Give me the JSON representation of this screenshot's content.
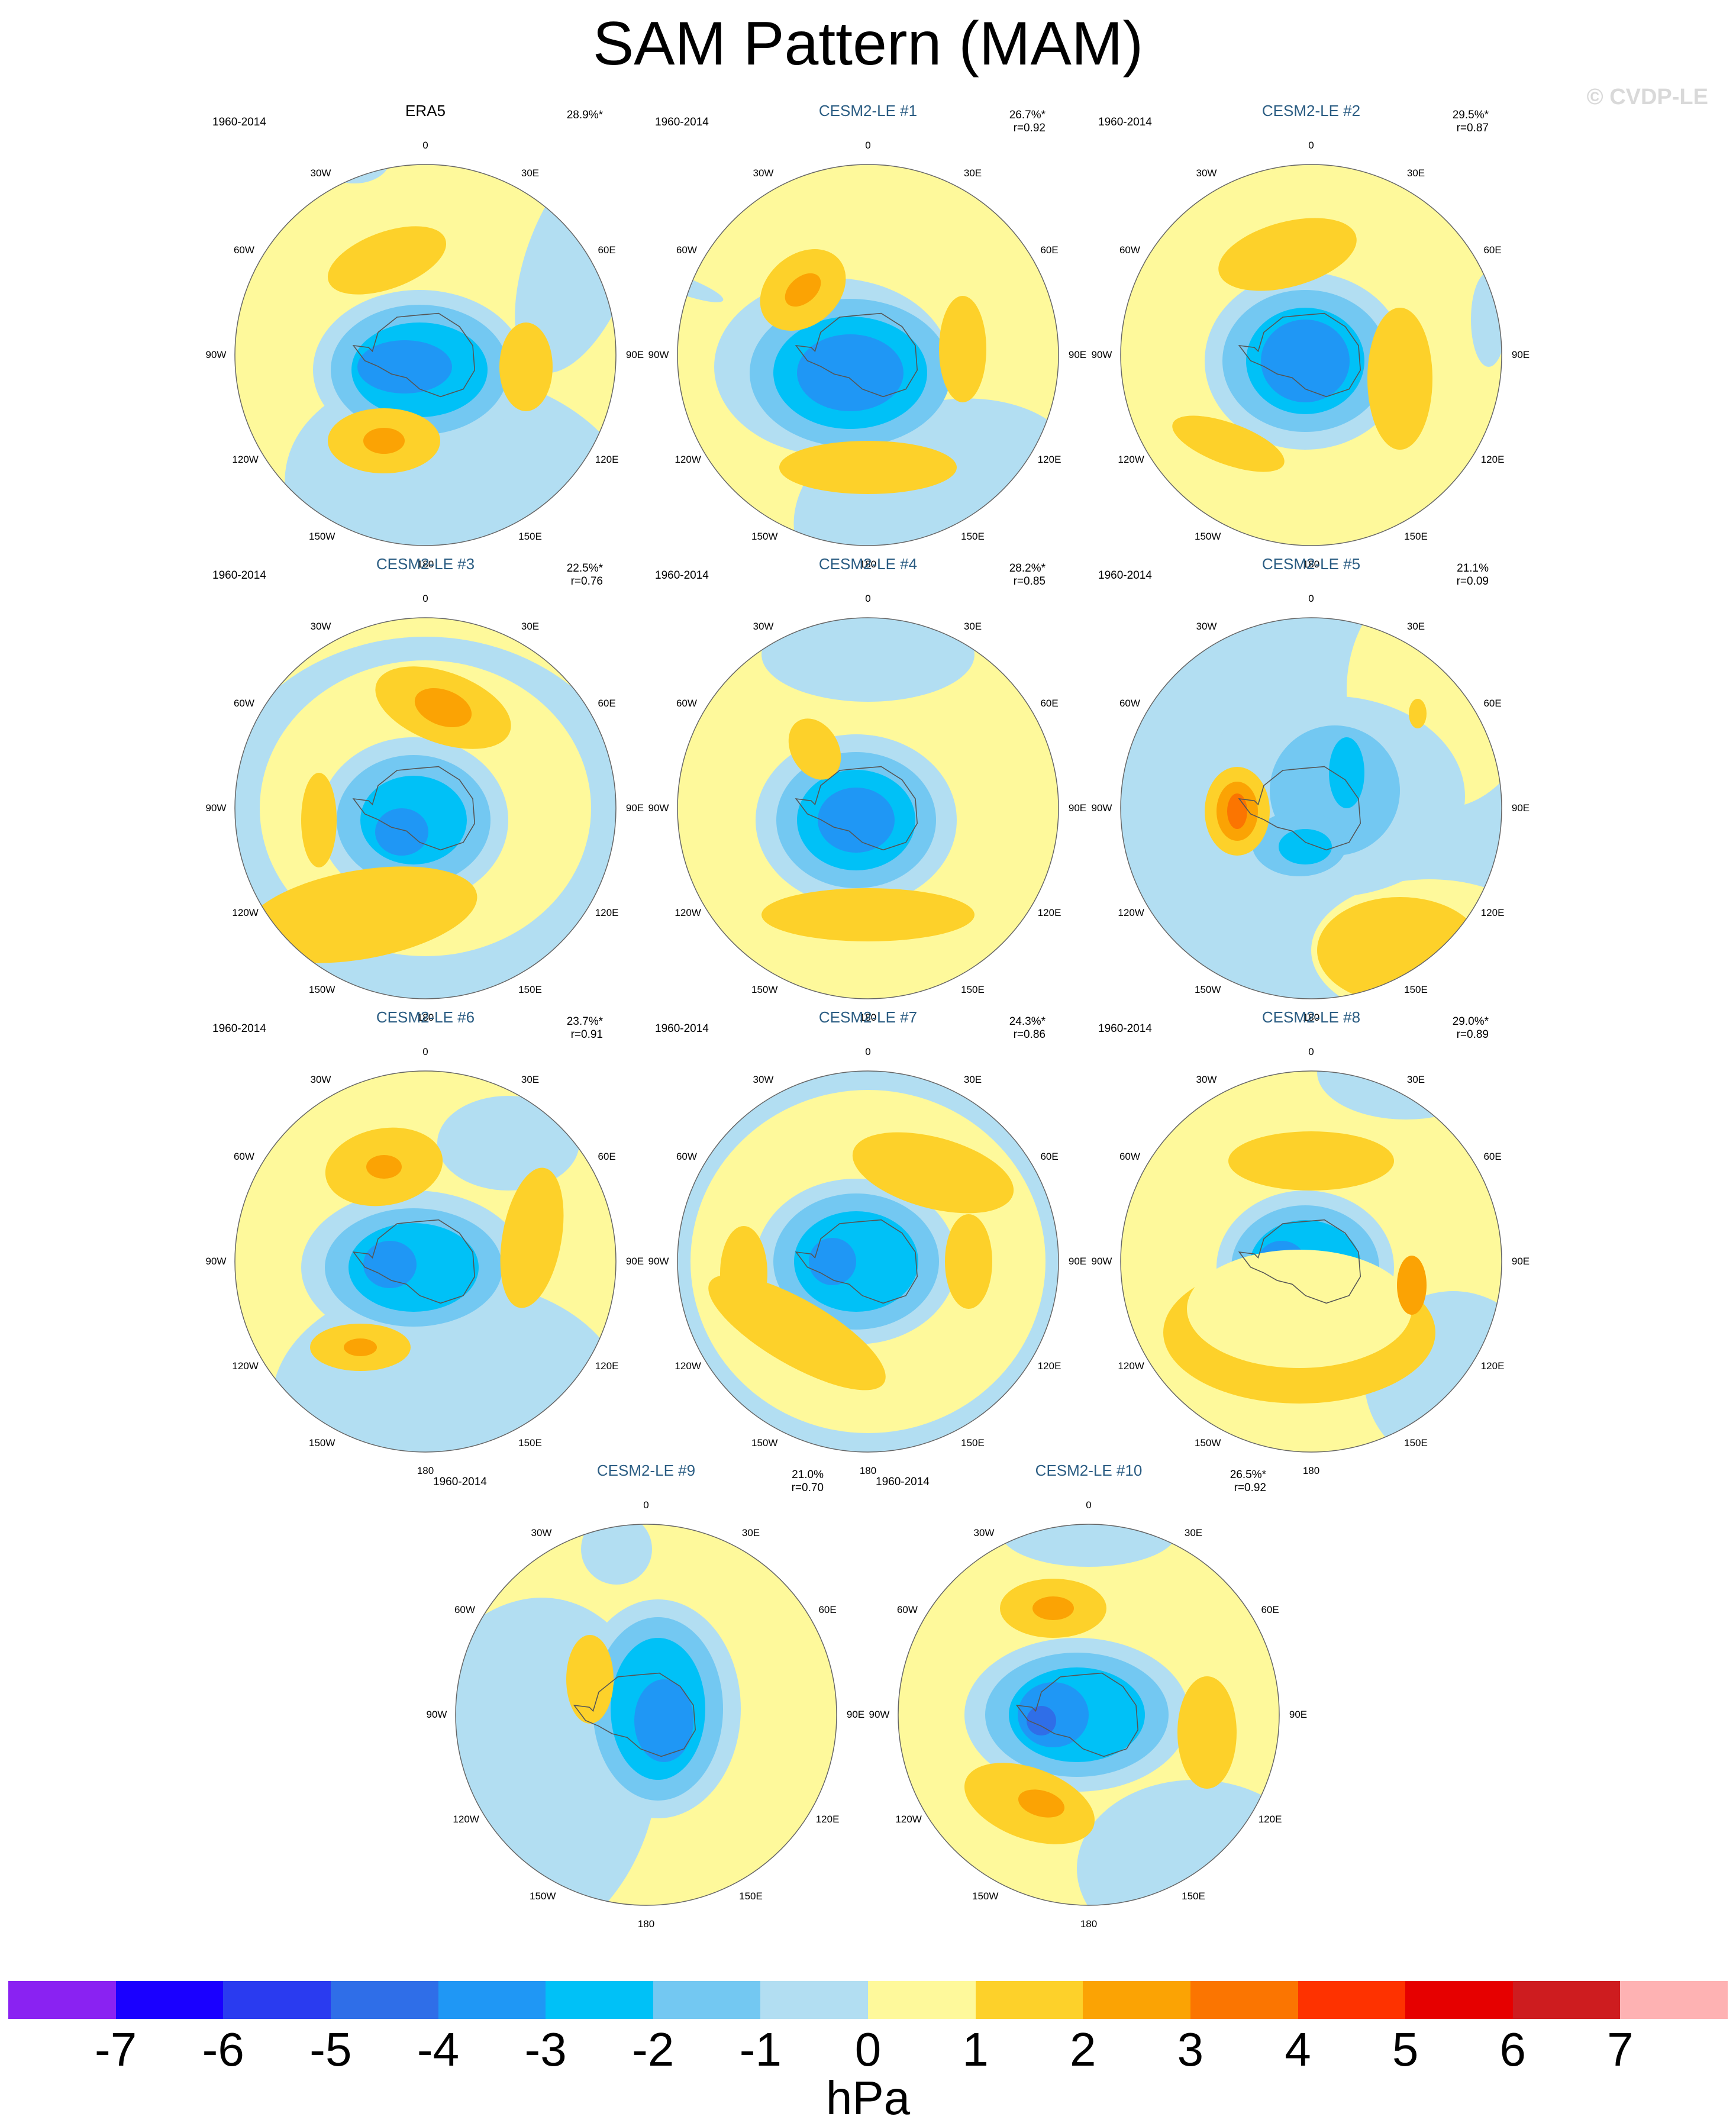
{
  "title": "SAM Pattern (MAM)",
  "copyright": "© CVDP-LE",
  "years": "1960-2014",
  "lon_labels": [
    "0",
    "30E",
    "60E",
    "90E",
    "120E",
    "150E",
    "180",
    "150W",
    "120W",
    "90W",
    "60W",
    "30W"
  ],
  "panels": [
    {
      "name": "ERA5",
      "obs": true,
      "pct": "28.9%*",
      "r": ""
    },
    {
      "name": "CESM2-LE #1",
      "obs": false,
      "pct": "26.7%*",
      "r": "r=0.92"
    },
    {
      "name": "CESM2-LE #2",
      "obs": false,
      "pct": "29.5%*",
      "r": "r=0.87"
    },
    {
      "name": "CESM2-LE #3",
      "obs": false,
      "pct": "22.5%*",
      "r": "r=0.76"
    },
    {
      "name": "CESM2-LE #4",
      "obs": false,
      "pct": "28.2%*",
      "r": "r=0.85"
    },
    {
      "name": "CESM2-LE #5",
      "obs": false,
      "pct": "21.1%",
      "r": "r=0.09"
    },
    {
      "name": "CESM2-LE #6",
      "obs": false,
      "pct": "23.7%*",
      "r": "r=0.91"
    },
    {
      "name": "CESM2-LE #7",
      "obs": false,
      "pct": "24.3%*",
      "r": "r=0.86"
    },
    {
      "name": "CESM2-LE #8",
      "obs": false,
      "pct": "29.0%*",
      "r": "r=0.89"
    },
    {
      "name": "CESM2-LE #9",
      "obs": false,
      "pct": "21.0%",
      "r": "r=0.70"
    },
    {
      "name": "CESM2-LE #10",
      "obs": false,
      "pct": "26.5%*",
      "r": "r=0.92"
    }
  ],
  "colorbar": {
    "colors": [
      "#8a22f2",
      "#1a00ff",
      "#2a3bf0",
      "#2f6ee8",
      "#1f97f5",
      "#00c1f7",
      "#73c8f2",
      "#b2def2",
      "#fef99b",
      "#fdd12a",
      "#fba304",
      "#fb7501",
      "#fe3200",
      "#e60000",
      "#ce1c1f",
      "#feb2b3"
    ],
    "ticks": [
      "-7",
      "-6",
      "-5",
      "-4",
      "-3",
      "-2",
      "-1",
      "0",
      "1",
      "2",
      "3",
      "4",
      "5",
      "6",
      "7"
    ],
    "units": "hPa"
  }
}
